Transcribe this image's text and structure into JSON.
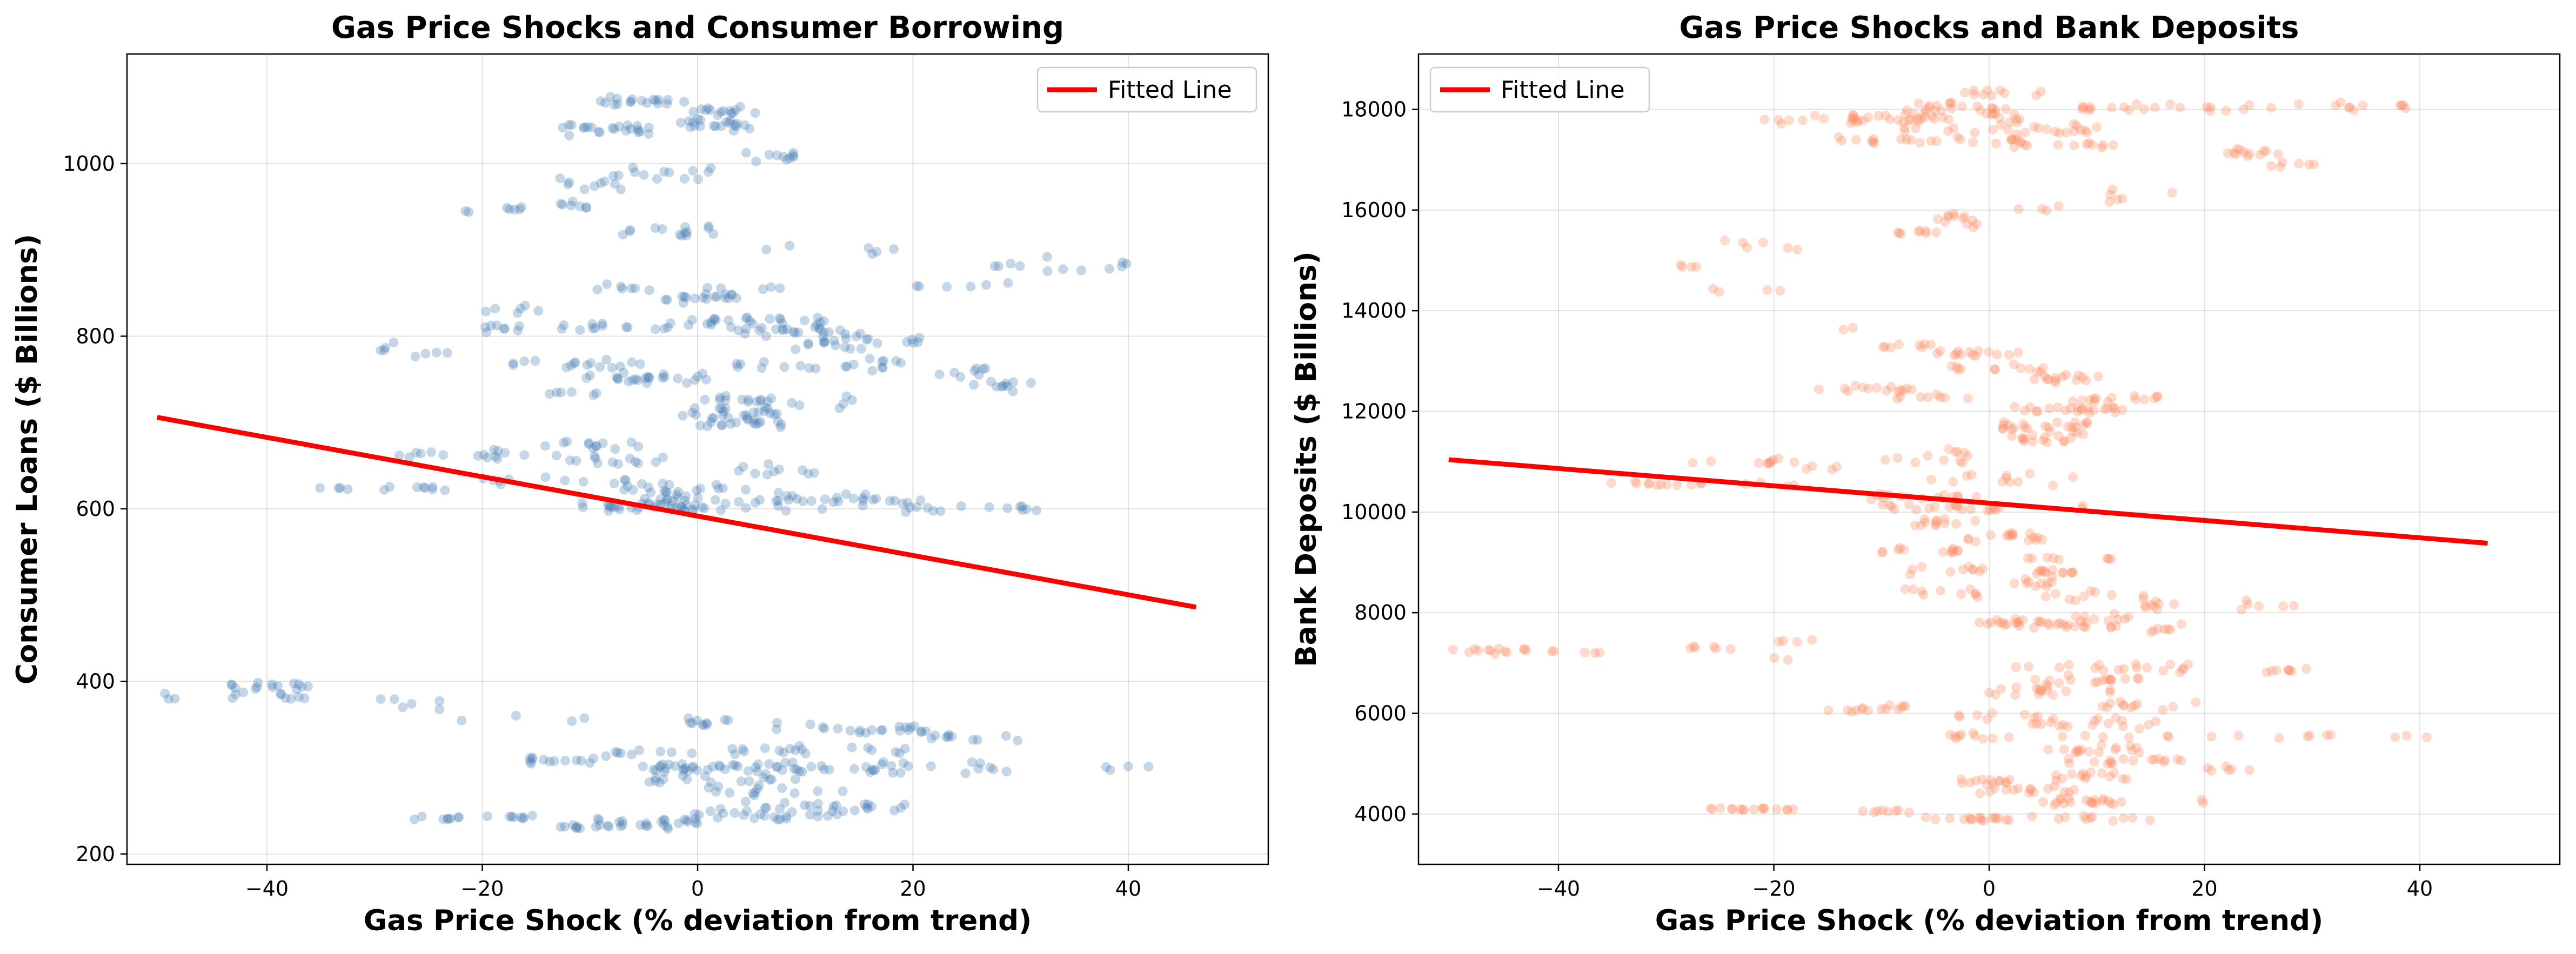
{
  "chart_data": [
    {
      "type": "scatter",
      "title": "Gas Price Shocks and Consumer Borrowing",
      "xlabel": "Gas Price Shock (% deviation from trend)",
      "ylabel": "Consumer Loans ($ Billions)",
      "xlim": [
        -53,
        53
      ],
      "ylim": [
        188,
        1127
      ],
      "xticks": [
        -40,
        -20,
        0,
        20,
        40
      ],
      "yticks": [
        200,
        400,
        600,
        800,
        1000
      ],
      "xtick_labels": [
        "−40",
        "−20",
        "0",
        "20",
        "40"
      ],
      "ytick_labels": [
        "200",
        "400",
        "600",
        "800",
        "1000"
      ],
      "grid": true,
      "legend": {
        "position": "top-right",
        "entries": [
          "Fitted Line"
        ]
      },
      "point_color": "#4a7fb5",
      "line_color": "#ff0000",
      "fitted_line": {
        "name": "Fitted Line",
        "x": [
          -50.2,
          46.3
        ],
        "y": [
          706,
          486
        ]
      },
      "scatter_bands": [
        {
          "y": 1072,
          "x0": -10,
          "x1": -1,
          "n": 18,
          "jitter": 8
        },
        {
          "y": 1060,
          "x0": -1,
          "x1": 6,
          "n": 14,
          "jitter": 8
        },
        {
          "y": 1040,
          "x0": -13,
          "x1": -2,
          "n": 22,
          "jitter": 10
        },
        {
          "y": 1045,
          "x0": -2,
          "x1": 5,
          "n": 20,
          "jitter": 10
        },
        {
          "y": 1008,
          "x0": 4,
          "x1": 9,
          "n": 10,
          "jitter": 8
        },
        {
          "y": 978,
          "x0": -13,
          "x1": -4,
          "n": 10,
          "jitter": 12
        },
        {
          "y": 990,
          "x0": -8,
          "x1": 2,
          "n": 12,
          "jitter": 12
        },
        {
          "y": 950,
          "x0": -19,
          "x1": -10,
          "n": 12,
          "jitter": 10
        },
        {
          "y": 945,
          "x0": -22,
          "x1": -21,
          "n": 2,
          "jitter": 3
        },
        {
          "y": 922,
          "x0": -7,
          "x1": 3,
          "n": 14,
          "jitter": 10
        },
        {
          "y": 900,
          "x0": 4,
          "x1": 20,
          "n": 6,
          "jitter": 8
        },
        {
          "y": 880,
          "x0": 25,
          "x1": 40,
          "n": 12,
          "jitter": 15
        },
        {
          "y": 855,
          "x0": -11,
          "x1": 8,
          "n": 12,
          "jitter": 8
        },
        {
          "y": 845,
          "x0": -3,
          "x1": 4,
          "n": 18,
          "jitter": 8
        },
        {
          "y": 860,
          "x0": 20,
          "x1": 30,
          "n": 6,
          "jitter": 12
        },
        {
          "y": 830,
          "x0": -20,
          "x1": -13,
          "n": 6,
          "jitter": 15
        },
        {
          "y": 818,
          "x0": -1,
          "x1": 12,
          "n": 24,
          "jitter": 10
        },
        {
          "y": 810,
          "x0": -20,
          "x1": -2,
          "n": 22,
          "jitter": 8
        },
        {
          "y": 805,
          "x0": 3,
          "x1": 16,
          "n": 22,
          "jitter": 10
        },
        {
          "y": 792,
          "x0": 8,
          "x1": 21,
          "n": 20,
          "jitter": 12
        },
        {
          "y": 785,
          "x0": -30,
          "x1": -23,
          "n": 8,
          "jitter": 10
        },
        {
          "y": 768,
          "x0": -20,
          "x1": -4,
          "n": 16,
          "jitter": 8
        },
        {
          "y": 768,
          "x0": 3,
          "x1": 20,
          "n": 20,
          "jitter": 10
        },
        {
          "y": 752,
          "x0": -8,
          "x1": -3,
          "n": 12,
          "jitter": 6
        },
        {
          "y": 750,
          "x0": -12,
          "x1": 3,
          "n": 12,
          "jitter": 12
        },
        {
          "y": 760,
          "x0": 22,
          "x1": 27,
          "n": 8,
          "jitter": 12
        },
        {
          "y": 742,
          "x0": 25,
          "x1": 31,
          "n": 10,
          "jitter": 8
        },
        {
          "y": 735,
          "x0": -15,
          "x1": -8,
          "n": 6,
          "jitter": 12
        },
        {
          "y": 725,
          "x0": 0,
          "x1": 15,
          "n": 22,
          "jitter": 12
        },
        {
          "y": 710,
          "x0": -2,
          "x1": 8,
          "n": 22,
          "jitter": 10
        },
        {
          "y": 698,
          "x0": 0,
          "x1": 8,
          "n": 14,
          "jitter": 8
        },
        {
          "y": 675,
          "x0": -15,
          "x1": -5,
          "n": 12,
          "jitter": 8
        },
        {
          "y": 662,
          "x0": -28,
          "x1": -12,
          "n": 16,
          "jitter": 8
        },
        {
          "y": 655,
          "x0": -12,
          "x1": -3,
          "n": 12,
          "jitter": 8
        },
        {
          "y": 645,
          "x0": 3,
          "x1": 11,
          "n": 10,
          "jitter": 10
        },
        {
          "y": 632,
          "x0": -21,
          "x1": -5,
          "n": 12,
          "jitter": 10
        },
        {
          "y": 625,
          "x0": -37,
          "x1": -22,
          "n": 12,
          "jitter": 5
        },
        {
          "y": 622,
          "x0": -8,
          "x1": 5,
          "n": 18,
          "jitter": 10
        },
        {
          "y": 610,
          "x0": -5,
          "x1": 22,
          "n": 40,
          "jitter": 10
        },
        {
          "y": 600,
          "x0": -11,
          "x1": 32,
          "n": 36,
          "jitter": 6
        },
        {
          "y": 603,
          "x0": -11,
          "x1": 0,
          "n": 16,
          "jitter": 8
        },
        {
          "y": 395,
          "x0": -44,
          "x1": -36,
          "n": 14,
          "jitter": 8
        },
        {
          "y": 382,
          "x0": -50,
          "x1": -36,
          "n": 12,
          "jitter": 8
        },
        {
          "y": 372,
          "x0": -30,
          "x1": -23,
          "n": 6,
          "jitter": 10
        },
        {
          "y": 352,
          "x0": -1,
          "x1": 3,
          "n": 10,
          "jitter": 10
        },
        {
          "y": 345,
          "x0": 7,
          "x1": 22,
          "n": 22,
          "jitter": 12
        },
        {
          "y": 355,
          "x0": -22,
          "x1": -10,
          "n": 4,
          "jitter": 8
        },
        {
          "y": 333,
          "x0": 21,
          "x1": 30,
          "n": 10,
          "jitter": 8
        },
        {
          "y": 320,
          "x0": -8,
          "x1": 20,
          "n": 26,
          "jitter": 10
        },
        {
          "y": 308,
          "x0": -17,
          "x1": -8,
          "n": 14,
          "jitter": 8
        },
        {
          "y": 300,
          "x0": -6,
          "x1": 4,
          "n": 26,
          "jitter": 8
        },
        {
          "y": 300,
          "x0": 4,
          "x1": 30,
          "n": 40,
          "jitter": 12
        },
        {
          "y": 300,
          "x0": 32,
          "x1": 47,
          "n": 4,
          "jitter": 6
        },
        {
          "y": 285,
          "x0": -5,
          "x1": 10,
          "n": 16,
          "jitter": 8
        },
        {
          "y": 272,
          "x0": 1,
          "x1": 14,
          "n": 12,
          "jitter": 10
        },
        {
          "y": 255,
          "x0": 3,
          "x1": 20,
          "n": 20,
          "jitter": 10
        },
        {
          "y": 245,
          "x0": -1,
          "x1": 13,
          "n": 26,
          "jitter": 10
        },
        {
          "y": 242,
          "x0": -27,
          "x1": -15,
          "n": 16,
          "jitter": 6
        },
        {
          "y": 238,
          "x0": -10,
          "x1": 0,
          "n": 12,
          "jitter": 8
        },
        {
          "y": 232,
          "x0": -13,
          "x1": -2,
          "n": 20,
          "jitter": 6
        }
      ]
    },
    {
      "type": "scatter",
      "title": "Gas Price Shocks and Bank Deposits",
      "xlabel": "Gas Price Shock (% deviation from trend)",
      "ylabel": "Bank Deposits ($ Billions)",
      "xlim": [
        -53,
        53
      ],
      "ylim": [
        3000,
        19100
      ],
      "xticks": [
        -40,
        -20,
        0,
        20,
        40
      ],
      "yticks": [
        4000,
        6000,
        8000,
        10000,
        12000,
        14000,
        16000,
        18000
      ],
      "xtick_labels": [
        "−40",
        "−20",
        "0",
        "20",
        "40"
      ],
      "ytick_labels": [
        "4000",
        "6000",
        "8000",
        "10000",
        "12000",
        "14000",
        "16000",
        "18000"
      ],
      "grid": true,
      "legend": {
        "position": "top-left",
        "entries": [
          "Fitted Line"
        ]
      },
      "point_color": "#fc8d62",
      "line_color": "#ff0000",
      "fitted_line": {
        "name": "Fitted Line",
        "x": [
          -50.2,
          46.3
        ],
        "y": [
          11040,
          9380
        ]
      },
      "scatter_bands": [
        {
          "y": 18320,
          "x0": -3,
          "x1": 5,
          "n": 10,
          "jitter": 120
        },
        {
          "y": 18050,
          "x0": -7,
          "x1": 2,
          "n": 18,
          "jitter": 150
        },
        {
          "y": 18050,
          "x0": 8,
          "x1": 18,
          "n": 14,
          "jitter": 120
        },
        {
          "y": 18050,
          "x0": 20,
          "x1": 40,
          "n": 18,
          "jitter": 120
        },
        {
          "y": 17800,
          "x0": -21,
          "x1": -7,
          "n": 20,
          "jitter": 120
        },
        {
          "y": 17850,
          "x0": -10,
          "x1": 5,
          "n": 26,
          "jitter": 180
        },
        {
          "y": 17600,
          "x0": -8,
          "x1": 10,
          "n": 24,
          "jitter": 180
        },
        {
          "y": 17400,
          "x0": -14,
          "x1": 3,
          "n": 22,
          "jitter": 120
        },
        {
          "y": 17300,
          "x0": 2,
          "x1": 12,
          "n": 12,
          "jitter": 120
        },
        {
          "y": 17150,
          "x0": 22,
          "x1": 27,
          "n": 12,
          "jitter": 150
        },
        {
          "y": 16900,
          "x0": 26,
          "x1": 31,
          "n": 6,
          "jitter": 150
        },
        {
          "y": 16300,
          "x0": 8,
          "x1": 18,
          "n": 6,
          "jitter": 250
        },
        {
          "y": 16050,
          "x0": -2,
          "x1": 7,
          "n": 4,
          "jitter": 120
        },
        {
          "y": 15800,
          "x0": -5,
          "x1": -1,
          "n": 12,
          "jitter": 200
        },
        {
          "y": 15550,
          "x0": -9,
          "x1": -3,
          "n": 8,
          "jitter": 100
        },
        {
          "y": 15250,
          "x0": -27,
          "x1": -16,
          "n": 6,
          "jitter": 200
        },
        {
          "y": 14950,
          "x0": -30,
          "x1": -27,
          "n": 4,
          "jitter": 200
        },
        {
          "y": 14350,
          "x0": -26,
          "x1": -19,
          "n": 4,
          "jitter": 250
        },
        {
          "y": 13650,
          "x0": -14,
          "x1": -12,
          "n": 2,
          "jitter": 100
        },
        {
          "y": 13300,
          "x0": -10,
          "x1": -5,
          "n": 8,
          "jitter": 100
        },
        {
          "y": 13150,
          "x0": -5,
          "x1": 3,
          "n": 14,
          "jitter": 120
        },
        {
          "y": 12850,
          "x0": -4,
          "x1": 6,
          "n": 12,
          "jitter": 150
        },
        {
          "y": 12650,
          "x0": 4,
          "x1": 11,
          "n": 14,
          "jitter": 120
        },
        {
          "y": 12450,
          "x0": -16,
          "x1": -7,
          "n": 14,
          "jitter": 100
        },
        {
          "y": 12250,
          "x0": -9,
          "x1": -1,
          "n": 8,
          "jitter": 120
        },
        {
          "y": 12250,
          "x0": 6,
          "x1": 16,
          "n": 14,
          "jitter": 120
        },
        {
          "y": 12050,
          "x0": 2,
          "x1": 13,
          "n": 22,
          "jitter": 150
        },
        {
          "y": 11700,
          "x0": 1,
          "x1": 10,
          "n": 24,
          "jitter": 200
        },
        {
          "y": 11450,
          "x0": 2,
          "x1": 8,
          "n": 14,
          "jitter": 150
        },
        {
          "y": 11200,
          "x0": -6,
          "x1": -1,
          "n": 4,
          "jitter": 100
        },
        {
          "y": 11000,
          "x0": -28,
          "x1": -15,
          "n": 10,
          "jitter": 100
        },
        {
          "y": 11000,
          "x0": -10,
          "x1": -1,
          "n": 8,
          "jitter": 150
        },
        {
          "y": 10900,
          "x0": -17,
          "x1": -14,
          "n": 4,
          "jitter": 100
        },
        {
          "y": 10700,
          "x0": -6,
          "x1": 8,
          "n": 12,
          "jitter": 200
        },
        {
          "y": 10550,
          "x0": -37,
          "x1": -25,
          "n": 12,
          "jitter": 80
        },
        {
          "y": 10550,
          "x0": -23,
          "x1": -18,
          "n": 4,
          "jitter": 100
        },
        {
          "y": 10300,
          "x0": -11,
          "x1": -1,
          "n": 14,
          "jitter": 150
        },
        {
          "y": 10100,
          "x0": -10,
          "x1": 9,
          "n": 22,
          "jitter": 120
        },
        {
          "y": 9800,
          "x0": -7,
          "x1": -1,
          "n": 12,
          "jitter": 150
        },
        {
          "y": 9500,
          "x0": -2,
          "x1": 5,
          "n": 16,
          "jitter": 150
        },
        {
          "y": 9250,
          "x0": -10,
          "x1": -2,
          "n": 12,
          "jitter": 120
        },
        {
          "y": 9050,
          "x0": 2,
          "x1": 12,
          "n": 8,
          "jitter": 120
        },
        {
          "y": 8850,
          "x0": -8,
          "x1": 0,
          "n": 10,
          "jitter": 120
        },
        {
          "y": 8800,
          "x0": 4,
          "x1": 8,
          "n": 12,
          "jitter": 120
        },
        {
          "y": 8600,
          "x0": 1,
          "x1": 6,
          "n": 10,
          "jitter": 150
        },
        {
          "y": 8400,
          "x0": -8,
          "x1": -1,
          "n": 10,
          "jitter": 150
        },
        {
          "y": 8350,
          "x0": 5,
          "x1": 15,
          "n": 10,
          "jitter": 150
        },
        {
          "y": 8150,
          "x0": 14,
          "x1": 30,
          "n": 14,
          "jitter": 120
        },
        {
          "y": 7900,
          "x0": 8,
          "x1": 13,
          "n": 8,
          "jitter": 100
        },
        {
          "y": 7800,
          "x0": -1,
          "x1": 10,
          "n": 22,
          "jitter": 150
        },
        {
          "y": 7700,
          "x0": 2,
          "x1": 19,
          "n": 18,
          "jitter": 150
        },
        {
          "y": 7400,
          "x0": -20,
          "x1": -14,
          "n": 4,
          "jitter": 100
        },
        {
          "y": 7300,
          "x0": -28,
          "x1": -23,
          "n": 6,
          "jitter": 80
        },
        {
          "y": 7250,
          "x0": -50,
          "x1": -36,
          "n": 18,
          "jitter": 100
        },
        {
          "y": 7100,
          "x0": -22,
          "x1": -18,
          "n": 2,
          "jitter": 100
        },
        {
          "y": 6900,
          "x0": 2,
          "x1": 20,
          "n": 18,
          "jitter": 150
        },
        {
          "y": 6850,
          "x0": 25,
          "x1": 30,
          "n": 8,
          "jitter": 80
        },
        {
          "y": 6650,
          "x0": 4,
          "x1": 14,
          "n": 16,
          "jitter": 150
        },
        {
          "y": 6450,
          "x0": 0,
          "x1": 15,
          "n": 16,
          "jitter": 150
        },
        {
          "y": 6200,
          "x0": 10,
          "x1": 20,
          "n": 12,
          "jitter": 150
        },
        {
          "y": 6100,
          "x0": -15,
          "x1": -7,
          "n": 14,
          "jitter": 100
        },
        {
          "y": 5950,
          "x0": -3,
          "x1": 5,
          "n": 8,
          "jitter": 120
        },
        {
          "y": 5800,
          "x0": 4,
          "x1": 16,
          "n": 18,
          "jitter": 150
        },
        {
          "y": 5550,
          "x0": -4,
          "x1": 2,
          "n": 10,
          "jitter": 120
        },
        {
          "y": 5550,
          "x0": 6,
          "x1": 46,
          "n": 16,
          "jitter": 60
        },
        {
          "y": 5300,
          "x0": 4,
          "x1": 15,
          "n": 16,
          "jitter": 150
        },
        {
          "y": 5050,
          "x0": 6,
          "x1": 18,
          "n": 16,
          "jitter": 150
        },
        {
          "y": 4900,
          "x0": 20,
          "x1": 26,
          "n": 6,
          "jitter": 100
        },
        {
          "y": 4750,
          "x0": 5,
          "x1": 13,
          "n": 14,
          "jitter": 150
        },
        {
          "y": 4650,
          "x0": -3,
          "x1": 2,
          "n": 12,
          "jitter": 80
        },
        {
          "y": 4500,
          "x0": -1,
          "x1": 8,
          "n": 16,
          "jitter": 150
        },
        {
          "y": 4250,
          "x0": 5,
          "x1": 13,
          "n": 20,
          "jitter": 100
        },
        {
          "y": 4250,
          "x0": 18,
          "x1": 20,
          "n": 2,
          "jitter": 60
        },
        {
          "y": 4100,
          "x0": -27,
          "x1": -18,
          "n": 16,
          "jitter": 60
        },
        {
          "y": 4050,
          "x0": -13,
          "x1": -7,
          "n": 8,
          "jitter": 80
        },
        {
          "y": 3900,
          "x0": -6,
          "x1": 4,
          "n": 18,
          "jitter": 80
        },
        {
          "y": 3900,
          "x0": 6,
          "x1": 15,
          "n": 10,
          "jitter": 80
        }
      ]
    }
  ]
}
